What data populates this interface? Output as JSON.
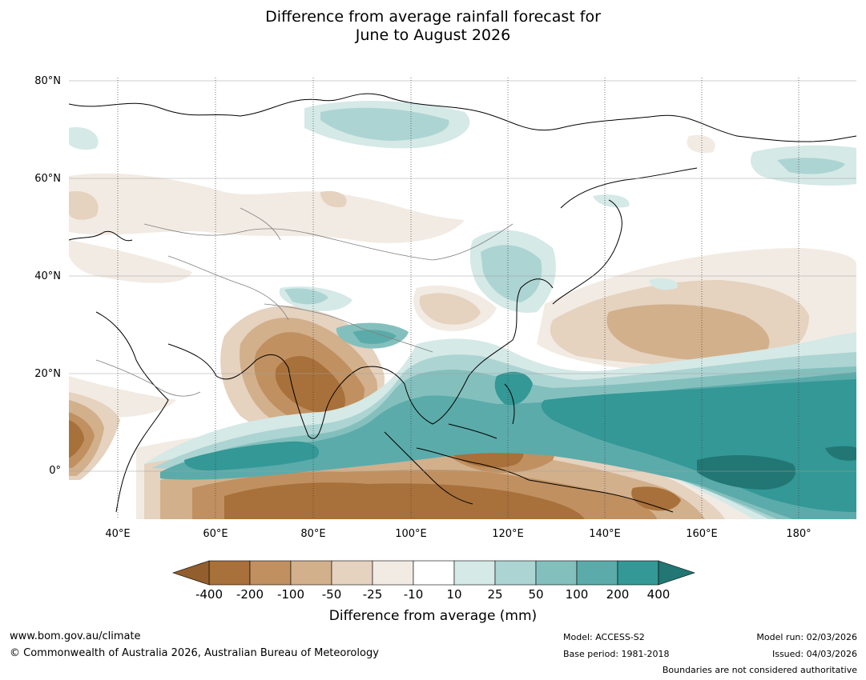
{
  "title": {
    "line1": "Difference from average rainfall forecast for",
    "line2": "June to August 2026"
  },
  "map": {
    "lat_labels": [
      "80°N",
      "60°N",
      "40°N",
      "20°N",
      "0°"
    ],
    "lon_labels": [
      "40°E",
      "60°E",
      "80°E",
      "100°E",
      "120°E",
      "140°E",
      "160°E",
      "180°"
    ],
    "extent": {
      "lon_min": 30,
      "lon_max": 192,
      "lat_min": -10,
      "lat_max": 80
    }
  },
  "colorbar": {
    "labels": [
      "-400",
      "-200",
      "-100",
      "-50",
      "-25",
      "-10",
      "10",
      "25",
      "50",
      "100",
      "200",
      "400"
    ],
    "colors": [
      "#a8703a",
      "#c09060",
      "#d2b08c",
      "#e5d2bf",
      "#f2ebe3",
      "#ffffff",
      "#d5e9e7",
      "#acd4d2",
      "#83c0bd",
      "#5babaa",
      "#339896"
    ],
    "low_extend_color": "#935e2d",
    "high_extend_color": "#227673",
    "title": "Difference from average (mm)"
  },
  "footer": {
    "website": "www.bom.gov.au/climate",
    "copyright": "© Commonwealth of Australia 2026, Australian Bureau of Meteorology",
    "model": "Model: ACCESS-S2",
    "base_period": "Base period: 1981-2018",
    "model_run": "Model run: 02/03/2026",
    "issued": "Issued: 04/03/2026",
    "disclaimer": "Boundaries are not considered authoritative"
  }
}
